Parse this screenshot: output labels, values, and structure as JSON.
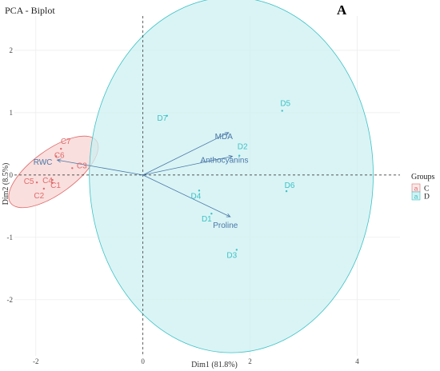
{
  "chart_data": {
    "type": "scatter",
    "title": "PCA - Biplot",
    "panel_label": "A",
    "xlabel": "Dim1 (81.8%)",
    "ylabel": "Dim2 (8.5%)",
    "xlim": [
      -2.4,
      4.8
    ],
    "ylim": [
      -2.9,
      2.55
    ],
    "x_ticks": [
      -2,
      0,
      2,
      4
    ],
    "y_ticks": [
      -2,
      -1,
      0,
      1,
      2
    ],
    "grid": true,
    "legend": {
      "title": "Groups",
      "position": "right",
      "entries": [
        {
          "key": "a",
          "label": "C"
        },
        {
          "key": "a",
          "label": "D"
        }
      ]
    },
    "groups": [
      {
        "name": "C",
        "color": "#e06b6b",
        "points": [
          {
            "label": "C1",
            "x": -1.69,
            "y": -0.13
          },
          {
            "label": "C2",
            "x": -1.85,
            "y": -0.22
          },
          {
            "label": "C3",
            "x": -1.32,
            "y": 0.11
          },
          {
            "label": "C4",
            "x": -1.69,
            "y": -0.08
          },
          {
            "label": "C5",
            "x": -1.98,
            "y": -0.12
          },
          {
            "label": "C6",
            "x": -1.62,
            "y": 0.3
          },
          {
            "label": "C7",
            "x": -1.53,
            "y": 0.42
          }
        ],
        "ellipse": {
          "cx": -1.67,
          "cy": 0.05,
          "rx": 0.99,
          "ry": 0.35,
          "angle_deg": 36
        }
      },
      {
        "name": "D",
        "color": "#3cc2c6",
        "points": [
          {
            "label": "D1",
            "x": 1.28,
            "y": -0.62
          },
          {
            "label": "D2",
            "x": 1.8,
            "y": 0.31
          },
          {
            "label": "D3",
            "x": 1.75,
            "y": -1.2
          },
          {
            "label": "D4",
            "x": 1.05,
            "y": -0.25
          },
          {
            "label": "D5",
            "x": 2.6,
            "y": 1.03
          },
          {
            "label": "D6",
            "x": 2.68,
            "y": -0.26
          },
          {
            "label": "D7",
            "x": 0.45,
            "y": 0.95
          }
        ],
        "ellipse": {
          "cx": 1.65,
          "cy": 0.0,
          "rx": 2.65,
          "ry": 2.85,
          "angle_deg": 0
        }
      }
    ],
    "variables": {
      "color": "#4a77a8",
      "items": [
        {
          "label": "MDA",
          "x": 1.6,
          "y": 0.68
        },
        {
          "label": "Anthocyanins",
          "x": 1.67,
          "y": 0.3
        },
        {
          "label": "Proline",
          "x": 1.63,
          "y": -0.67
        },
        {
          "label": "RWC",
          "x": -1.6,
          "y": 0.24
        }
      ]
    },
    "label_offsets": {
      "C1": [
        4,
        6
      ],
      "C2": [
        -6,
        12
      ],
      "C3": [
        12,
        0
      ],
      "C4": [
        -6,
        4
      ],
      "C5": [
        -10,
        2
      ],
      "C6": [
        4,
        2
      ],
      "C7": [
        6,
        -6
      ],
      "D1": [
        -6,
        10
      ],
      "D2": [
        4,
        -8
      ],
      "D3": [
        -6,
        10
      ],
      "D4": [
        -4,
        10
      ],
      "D5": [
        4,
        -6
      ],
      "D6": [
        4,
        -4
      ],
      "D7": [
        -6,
        6
      ],
      "MDA": [
        -6,
        8
      ],
      "Anthocyanins": [
        -10,
        8
      ],
      "Proline": [
        -6,
        14
      ],
      "RWC": [
        -18,
        6
      ]
    }
  }
}
